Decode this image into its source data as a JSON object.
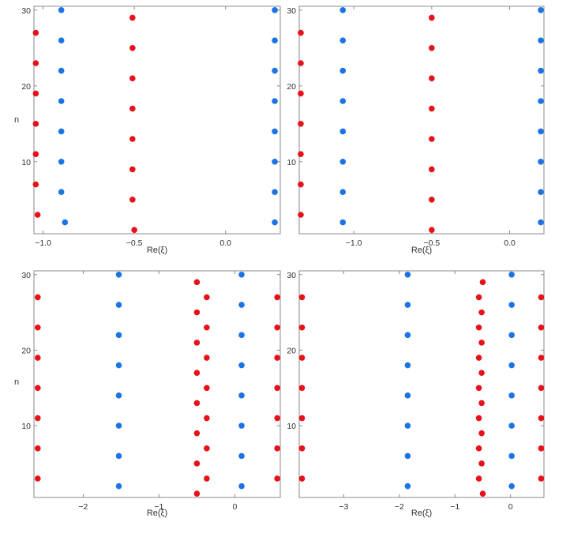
{
  "colors": {
    "red": "#e8111a",
    "blue": "#1a74e8"
  },
  "chart_data": [
    {
      "type": "scatter",
      "xlabel": "",
      "ylabel": "n",
      "xlim": [
        -1.05,
        0.3
      ],
      "ylim": [
        0.5,
        30.5
      ],
      "xticks": [
        -1.0,
        -0.5,
        0.0
      ],
      "xtick_labels": [
        "−1.0",
        "−0.5",
        "0.0"
      ],
      "yticks": [
        10,
        20,
        30
      ],
      "ytick_labels": [
        "10",
        "20",
        "30"
      ],
      "series": [
        {
          "color": "red",
          "points": [
            [
              -1.03,
              3
            ],
            [
              -1.04,
              7
            ],
            [
              -1.04,
              11
            ],
            [
              -1.04,
              15
            ],
            [
              -1.04,
              19
            ],
            [
              -1.04,
              23
            ],
            [
              -1.04,
              27
            ],
            [
              -0.5,
              1
            ],
            [
              -0.51,
              5
            ],
            [
              -0.51,
              9
            ],
            [
              -0.51,
              13
            ],
            [
              -0.51,
              17
            ],
            [
              -0.51,
              21
            ],
            [
              -0.51,
              25
            ],
            [
              -0.51,
              29
            ]
          ]
        },
        {
          "color": "blue",
          "points": [
            [
              -0.88,
              2
            ],
            [
              -0.9,
              6
            ],
            [
              -0.9,
              10
            ],
            [
              -0.9,
              14
            ],
            [
              -0.9,
              18
            ],
            [
              -0.9,
              22
            ],
            [
              -0.9,
              26
            ],
            [
              -0.9,
              30
            ],
            [
              0.27,
              2
            ],
            [
              0.27,
              6
            ],
            [
              0.27,
              10
            ],
            [
              0.27,
              14
            ],
            [
              0.27,
              18
            ],
            [
              0.27,
              22
            ],
            [
              0.27,
              26
            ],
            [
              0.27,
              30
            ]
          ]
        }
      ]
    },
    {
      "type": "scatter",
      "xlabel": "",
      "ylabel": "",
      "xlim": [
        -1.35,
        0.22
      ],
      "ylim": [
        0.5,
        30.5
      ],
      "xticks": [
        -1.0,
        -0.5,
        0.0
      ],
      "xtick_labels": [
        "−1.0",
        "−0.5",
        "0.0"
      ],
      "yticks": [
        10,
        20,
        30
      ],
      "ytick_labels": [
        "10",
        "20",
        "30"
      ],
      "series": [
        {
          "color": "red",
          "points": [
            [
              -1.34,
              3
            ],
            [
              -1.34,
              7
            ],
            [
              -1.34,
              11
            ],
            [
              -1.34,
              15
            ],
            [
              -1.34,
              19
            ],
            [
              -1.34,
              23
            ],
            [
              -1.34,
              27
            ],
            [
              -0.5,
              1
            ],
            [
              -0.5,
              5
            ],
            [
              -0.5,
              9
            ],
            [
              -0.5,
              13
            ],
            [
              -0.5,
              17
            ],
            [
              -0.5,
              21
            ],
            [
              -0.5,
              25
            ],
            [
              -0.5,
              29
            ]
          ]
        },
        {
          "color": "blue",
          "points": [
            [
              -1.07,
              2
            ],
            [
              -1.07,
              6
            ],
            [
              -1.07,
              10
            ],
            [
              -1.07,
              14
            ],
            [
              -1.07,
              18
            ],
            [
              -1.07,
              22
            ],
            [
              -1.07,
              26
            ],
            [
              -1.07,
              30
            ],
            [
              0.2,
              2
            ],
            [
              0.2,
              6
            ],
            [
              0.2,
              10
            ],
            [
              0.2,
              14
            ],
            [
              0.2,
              18
            ],
            [
              0.2,
              22
            ],
            [
              0.2,
              26
            ],
            [
              0.2,
              30
            ]
          ]
        }
      ]
    },
    {
      "type": "scatter",
      "xlabel": "Re(ξ)",
      "ylabel": "n",
      "xlim": [
        -2.65,
        0.6
      ],
      "ylim": [
        0.5,
        30.5
      ],
      "xticks": [
        -2,
        -1,
        0
      ],
      "xtick_labels": [
        "−2",
        "−1",
        "0"
      ],
      "yticks": [
        10,
        20,
        30
      ],
      "ytick_labels": [
        "10",
        "20",
        "30"
      ],
      "series": [
        {
          "color": "red",
          "points": [
            [
              -2.6,
              3
            ],
            [
              -2.6,
              7
            ],
            [
              -2.6,
              11
            ],
            [
              -2.6,
              15
            ],
            [
              -2.6,
              19
            ],
            [
              -2.6,
              23
            ],
            [
              -2.6,
              27
            ],
            [
              -0.5,
              1
            ],
            [
              -0.5,
              5
            ],
            [
              -0.5,
              9
            ],
            [
              -0.5,
              13
            ],
            [
              -0.5,
              17
            ],
            [
              -0.5,
              21
            ],
            [
              -0.5,
              25
            ],
            [
              -0.5,
              29
            ],
            [
              -0.37,
              3
            ],
            [
              -0.37,
              7
            ],
            [
              -0.37,
              11
            ],
            [
              -0.37,
              15
            ],
            [
              -0.37,
              19
            ],
            [
              -0.37,
              23
            ],
            [
              -0.37,
              27
            ],
            [
              0.56,
              3
            ],
            [
              0.56,
              7
            ],
            [
              0.56,
              11
            ],
            [
              0.56,
              15
            ],
            [
              0.56,
              19
            ],
            [
              0.56,
              23
            ],
            [
              0.56,
              27
            ]
          ]
        },
        {
          "color": "blue",
          "points": [
            [
              -1.53,
              2
            ],
            [
              -1.53,
              6
            ],
            [
              -1.53,
              10
            ],
            [
              -1.53,
              14
            ],
            [
              -1.53,
              18
            ],
            [
              -1.53,
              22
            ],
            [
              -1.53,
              26
            ],
            [
              -1.53,
              30
            ],
            [
              0.09,
              2
            ],
            [
              0.09,
              6
            ],
            [
              0.09,
              10
            ],
            [
              0.09,
              14
            ],
            [
              0.09,
              18
            ],
            [
              0.09,
              22
            ],
            [
              0.09,
              26
            ],
            [
              0.09,
              30
            ]
          ]
        }
      ]
    },
    {
      "type": "scatter",
      "xlabel": "Re(ξ)",
      "ylabel": "",
      "xlim": [
        -3.8,
        0.6
      ],
      "ylim": [
        0.5,
        30.5
      ],
      "xticks": [
        -3,
        -2,
        -1,
        0
      ],
      "xtick_labels": [
        "−3",
        "−2",
        "−1",
        "0"
      ],
      "yticks": [
        10,
        20,
        30
      ],
      "ytick_labels": [
        "10",
        "20",
        "30"
      ],
      "series": [
        {
          "color": "red",
          "points": [
            [
              -3.75,
              3
            ],
            [
              -3.75,
              7
            ],
            [
              -3.75,
              11
            ],
            [
              -3.75,
              15
            ],
            [
              -3.75,
              19
            ],
            [
              -3.75,
              23
            ],
            [
              -3.75,
              27
            ],
            [
              -0.5,
              1
            ],
            [
              -0.52,
              5
            ],
            [
              -0.52,
              9
            ],
            [
              -0.52,
              13
            ],
            [
              -0.52,
              17
            ],
            [
              -0.52,
              21
            ],
            [
              -0.52,
              25
            ],
            [
              -0.5,
              29
            ],
            [
              -0.57,
              3
            ],
            [
              -0.57,
              7
            ],
            [
              -0.57,
              11
            ],
            [
              -0.57,
              15
            ],
            [
              -0.57,
              19
            ],
            [
              -0.57,
              23
            ],
            [
              -0.57,
              27
            ],
            [
              0.55,
              3
            ],
            [
              0.55,
              7
            ],
            [
              0.55,
              11
            ],
            [
              0.55,
              15
            ],
            [
              0.55,
              19
            ],
            [
              0.55,
              23
            ],
            [
              0.55,
              27
            ]
          ]
        },
        {
          "color": "blue",
          "points": [
            [
              -1.85,
              2
            ],
            [
              -1.85,
              6
            ],
            [
              -1.85,
              10
            ],
            [
              -1.85,
              14
            ],
            [
              -1.85,
              18
            ],
            [
              -1.85,
              22
            ],
            [
              -1.85,
              26
            ],
            [
              -1.85,
              30
            ],
            [
              0.02,
              2
            ],
            [
              0.02,
              6
            ],
            [
              0.02,
              10
            ],
            [
              0.02,
              14
            ],
            [
              0.02,
              18
            ],
            [
              0.02,
              22
            ],
            [
              0.02,
              26
            ],
            [
              0.02,
              30
            ]
          ]
        }
      ]
    }
  ]
}
